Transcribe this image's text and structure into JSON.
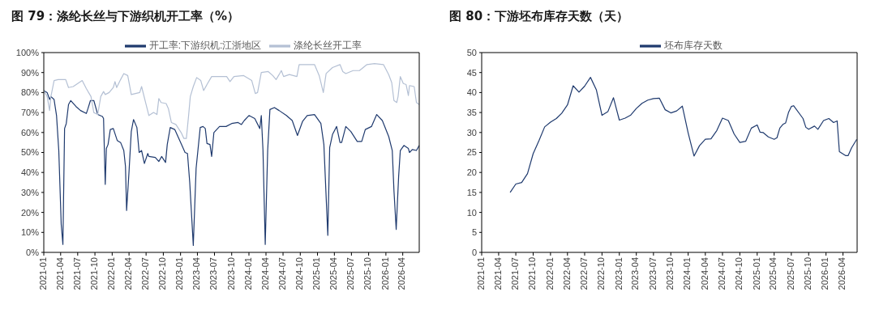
{
  "chart_data": [
    {
      "type": "line",
      "title": "图 79：涤纶长丝与下游织机开工率（%）",
      "ylim": [
        0,
        100
      ],
      "yticks": [
        {
          "value": 0,
          "label": "0%"
        },
        {
          "value": 10,
          "label": "10%"
        },
        {
          "value": 20,
          "label": "20%"
        },
        {
          "value": 30,
          "label": "30%"
        },
        {
          "value": 40,
          "label": "40%"
        },
        {
          "value": 50,
          "label": "50%"
        },
        {
          "value": 60,
          "label": "60%"
        },
        {
          "value": 70,
          "label": "70%"
        },
        {
          "value": 80,
          "label": "80%"
        },
        {
          "value": 90,
          "label": "90%"
        },
        {
          "value": 100,
          "label": "100%"
        }
      ],
      "xlim": [
        "2021-01-01",
        "2026-06-28"
      ],
      "xticks": [
        "2021-01",
        "2021-04",
        "2021-07",
        "2021-10",
        "2022-01",
        "2022-04",
        "2022-07",
        "2022-10",
        "2023-01",
        "2023-04",
        "2023-07",
        "2023-10",
        "2024-01",
        "2024-04",
        "2024-07",
        "2024-10",
        "2025-01",
        "2025-04",
        "2025-07",
        "2025-10",
        "2026-01",
        "2026-04"
      ],
      "legend": "top",
      "marker": "none",
      "line_style": "solid",
      "series": [
        {
          "name": "开工率:下游织机:江浙地区",
          "color": "#1f3a6e",
          "x": [
            "2021-01-01",
            "2021-01-19",
            "2021-02-01",
            "2021-02-08",
            "2021-02-25",
            "2021-03-10",
            "2021-03-22",
            "2021-04-04",
            "2021-04-13",
            "2021-04-22",
            "2021-05-01",
            "2021-05-13",
            "2021-05-25",
            "2021-06-22",
            "2021-07-16",
            "2021-08-16",
            "2021-08-25",
            "2021-09-07",
            "2021-09-25",
            "2021-10-16",
            "2021-11-10",
            "2021-11-16",
            "2021-11-25",
            "2021-12-01",
            "2021-12-10",
            "2021-12-22",
            "2022-01-07",
            "2022-01-28",
            "2022-02-15",
            "2022-03-04",
            "2022-03-13",
            "2022-03-19",
            "2022-04-01",
            "2022-04-13",
            "2022-04-25",
            "2022-05-13",
            "2022-05-25",
            "2022-06-07",
            "2022-06-22",
            "2022-07-10",
            "2022-07-16",
            "2022-08-19",
            "2022-09-07",
            "2022-09-22",
            "2022-10-13",
            "2022-10-22",
            "2022-11-07",
            "2022-12-01",
            "2023-01-04",
            "2023-01-25",
            "2023-02-07",
            "2023-02-19",
            "2023-03-10",
            "2023-03-25",
            "2023-04-16",
            "2023-05-01",
            "2023-05-13",
            "2023-05-22",
            "2023-06-07",
            "2023-06-16",
            "2023-06-28",
            "2023-07-28",
            "2023-09-01",
            "2023-10-01",
            "2023-11-04",
            "2023-11-22",
            "2023-12-07",
            "2024-01-01",
            "2024-02-01",
            "2024-02-28",
            "2024-03-07",
            "2024-03-16",
            "2024-03-28",
            "2024-04-10",
            "2024-04-22",
            "2024-05-16",
            "2024-06-10",
            "2024-07-19",
            "2024-08-19",
            "2024-09-16",
            "2024-10-13",
            "2024-11-07",
            "2024-12-16",
            "2025-01-19",
            "2025-02-04",
            "2025-02-25",
            "2025-03-07",
            "2025-03-22",
            "2025-04-13",
            "2025-05-01",
            "2025-05-10",
            "2025-06-01",
            "2025-06-28",
            "2025-08-01",
            "2025-08-25",
            "2025-09-13",
            "2025-10-16",
            "2025-11-13",
            "2025-12-13",
            "2026-01-16",
            "2026-02-04",
            "2026-02-13",
            "2026-02-25",
            "2026-03-10",
            "2026-03-19",
            "2026-04-07",
            "2026-05-01",
            "2026-05-07",
            "2026-05-22",
            "2026-06-13",
            "2026-06-28"
          ],
          "values": [
            81,
            80,
            76.5,
            78,
            76.5,
            68.5,
            51,
            14,
            4,
            62,
            64.5,
            74,
            76,
            73,
            71,
            69.5,
            72,
            76,
            76,
            69,
            68,
            67,
            34,
            52,
            54,
            61.5,
            62,
            56,
            55,
            51,
            43,
            21,
            40.5,
            60.5,
            66.5,
            62.5,
            50,
            51,
            44.5,
            49.5,
            48,
            47.5,
            45.5,
            48,
            45,
            54,
            62.5,
            61.5,
            54.5,
            50,
            49.5,
            35,
            3.5,
            42,
            62.5,
            63,
            62,
            54.5,
            54,
            48,
            60,
            63,
            63,
            64.5,
            65,
            64,
            66,
            68.5,
            67,
            62,
            68.5,
            51,
            4,
            51,
            71.5,
            72.5,
            71,
            68.5,
            66,
            58.5,
            65.5,
            68.5,
            69,
            64.5,
            54,
            8.5,
            52.5,
            59,
            63,
            55,
            55,
            63,
            60.5,
            55.5,
            55.5,
            61.5,
            63,
            69,
            66,
            58,
            51,
            31,
            11.5,
            38,
            51,
            53.5,
            52,
            50,
            51.5,
            51,
            53.5
          ]
        },
        {
          "name": "涤纶长丝开工率",
          "color": "#b4c0d4",
          "x": [
            "2021-01-01",
            "2021-01-19",
            "2021-02-01",
            "2021-02-08",
            "2021-02-25",
            "2021-03-19",
            "2021-04-28",
            "2021-05-13",
            "2021-06-07",
            "2021-07-25",
            "2021-08-16",
            "2021-09-10",
            "2021-09-25",
            "2021-10-16",
            "2021-11-01",
            "2021-11-16",
            "2021-11-25",
            "2021-12-16",
            "2022-01-07",
            "2022-01-16",
            "2022-01-25",
            "2022-02-15",
            "2022-03-04",
            "2022-03-25",
            "2022-04-13",
            "2022-05-28",
            "2022-06-07",
            "2022-07-01",
            "2022-07-16",
            "2022-08-10",
            "2022-08-28",
            "2022-09-07",
            "2022-09-19",
            "2022-10-16",
            "2022-10-28",
            "2022-11-13",
            "2022-12-07",
            "2023-01-04",
            "2023-01-19",
            "2023-02-01",
            "2023-02-13",
            "2023-02-22",
            "2023-03-10",
            "2023-03-28",
            "2023-04-19",
            "2023-05-04",
            "2023-05-25",
            "2023-06-16",
            "2023-07-28",
            "2023-09-04",
            "2023-09-22",
            "2023-10-13",
            "2023-12-04",
            "2024-01-16",
            "2024-02-04",
            "2024-02-16",
            "2024-03-07",
            "2024-04-13",
            "2024-05-07",
            "2024-05-25",
            "2024-06-10",
            "2024-06-22",
            "2024-07-04",
            "2024-08-04",
            "2024-09-13",
            "2024-09-25",
            "2024-10-28",
            "2024-12-16",
            "2025-01-10",
            "2025-02-01",
            "2025-02-16",
            "2025-03-22",
            "2025-05-01",
            "2025-05-16",
            "2025-06-01",
            "2025-07-10",
            "2025-08-13",
            "2025-09-22",
            "2025-11-01",
            "2025-12-19",
            "2026-01-16",
            "2026-02-01",
            "2026-02-13",
            "2026-02-28",
            "2026-03-07",
            "2026-03-19",
            "2026-04-04",
            "2026-04-19",
            "2026-05-01",
            "2026-05-07",
            "2026-06-01",
            "2026-06-13",
            "2026-06-28"
          ],
          "values": [
            81,
            78,
            71,
            78,
            86,
            86.5,
            86.5,
            82.5,
            83,
            86,
            82,
            78,
            70,
            69,
            78,
            80.5,
            79,
            80,
            82.5,
            85.5,
            82.5,
            86.5,
            89.5,
            88.5,
            79,
            80,
            83,
            74,
            68.5,
            70,
            69,
            77,
            75,
            74.5,
            72,
            65,
            64,
            60,
            57,
            57,
            68.5,
            78,
            83,
            87.5,
            86,
            81,
            84.5,
            88,
            88,
            88,
            85.5,
            88,
            88.5,
            86,
            79.5,
            80,
            90,
            90.5,
            88.5,
            86.5,
            89,
            91,
            88,
            89,
            88,
            94,
            94,
            94,
            88.5,
            80,
            89.5,
            92.5,
            94,
            90.5,
            89.5,
            91,
            91,
            94,
            94.5,
            94,
            89,
            85,
            76,
            75,
            78,
            88,
            84.5,
            84,
            78.5,
            83.5,
            83,
            75,
            74
          ]
        }
      ]
    },
    {
      "type": "line",
      "title": "图 80：下游坯布库存天数（天）",
      "ylim": [
        0,
        50
      ],
      "yticks": [
        0,
        5,
        10,
        15,
        20,
        25,
        30,
        35,
        40,
        45,
        50
      ],
      "xlim": [
        "2021-01-01",
        "2026-06-15"
      ],
      "xticks": [
        "2021-01",
        "2021-04",
        "2021-07",
        "2021-10",
        "2022-01",
        "2022-04",
        "2022-07",
        "2022-10",
        "2023-01",
        "2023-04",
        "2023-07",
        "2023-10",
        "2024-01",
        "2024-04",
        "2024-07",
        "2024-10",
        "2025-01",
        "2025-04",
        "2025-07",
        "2025-10",
        "2026-01",
        "2026-04"
      ],
      "legend": "top",
      "marker": "none",
      "line_style": "solid",
      "series": [
        {
          "name": "坯布库存天数",
          "color": "#1f3a6e",
          "x": [
            "2021-06",
            "2021-07",
            "2021-08",
            "2021-09",
            "2021-10",
            "2021-11",
            "2021-12",
            "2022-01",
            "2022-02",
            "2022-03",
            "2022-04",
            "2022-05",
            "2022-06",
            "2022-07",
            "2022-08",
            "2022-09",
            "2022-10",
            "2022-11",
            "2022-12",
            "2023-01",
            "2023-02",
            "2023-03",
            "2023-04",
            "2023-05",
            "2023-06",
            "2023-07",
            "2023-08",
            "2023-09",
            "2023-10",
            "2023-11",
            "2023-12",
            "2024-01",
            "2024-02",
            "2024-03",
            "2024-04",
            "2024-05",
            "2024-06",
            "2024-07",
            "2024-08",
            "2024-09",
            "2024-10",
            "2024-11",
            "2024-12",
            "2025-01",
            "2025-01-16",
            "2025-02",
            "2025-03",
            "2025-04",
            "2025-04-16",
            "2025-05",
            "2025-05-19",
            "2025-06",
            "2025-06-16",
            "2025-07",
            "2025-07-13",
            "2025-09",
            "2025-09-16",
            "2025-10",
            "2025-11",
            "2025-11-19",
            "2025-12-19",
            "2026-01-16",
            "2026-02-10",
            "2026-03",
            "2026-03-13",
            "2026-04-16",
            "2026-04-28",
            "2026-05-16",
            "2026-06-13"
          ],
          "values": [
            15,
            17.1,
            17.5,
            19.7,
            24.7,
            28,
            31.4,
            32.6,
            33.5,
            34.8,
            36.9,
            41.7,
            40.1,
            41.6,
            43.8,
            40.7,
            34.3,
            35.2,
            38.7,
            33.1,
            33.6,
            34.3,
            36,
            37.3,
            38.1,
            38.5,
            38.6,
            35.7,
            34.9,
            35.4,
            36.6,
            29.9,
            24.1,
            26.7,
            28.3,
            28.4,
            30.5,
            33.6,
            33,
            29.6,
            27.5,
            27.8,
            31.1,
            31.9,
            30.1,
            30,
            28.9,
            28.3,
            28.7,
            31.1,
            32.1,
            32.4,
            35,
            36.5,
            36.7,
            33.5,
            31.3,
            30.8,
            31.6,
            30.8,
            33,
            33.5,
            32.5,
            32.9,
            25.2,
            24.2,
            24.2,
            26.1,
            28.3
          ]
        }
      ]
    }
  ]
}
